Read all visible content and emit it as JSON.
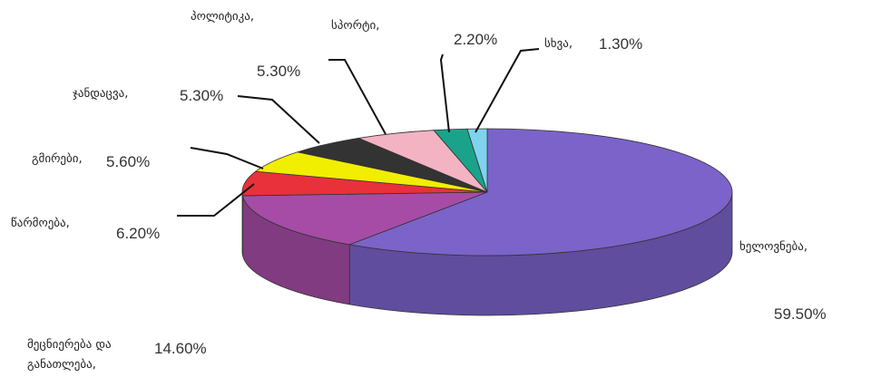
{
  "chart_data": {
    "type": "pie3d",
    "categories": [
      "ხელოვნება,",
      "მეცნიერება და განათლება,",
      "წარმოება,",
      "გმირები,",
      "ჯანდაცვა,",
      "პოლიტიკა,",
      "სპორტი,",
      "სხვა,"
    ],
    "values": [
      59.5,
      14.6,
      6.2,
      5.6,
      5.3,
      5.3,
      2.2,
      1.3
    ],
    "value_labels": [
      "59.50%",
      "14.60%",
      "6.20%",
      "5.60%",
      "5.30%",
      "5.30%",
      "2.20%",
      "1.30%"
    ],
    "colors": [
      "#7b63c9",
      "#a64ca6",
      "#e8313a",
      "#f2ee00",
      "#333333",
      "#f4b3c2",
      "#1aa38a",
      "#7fd3ee"
    ]
  }
}
